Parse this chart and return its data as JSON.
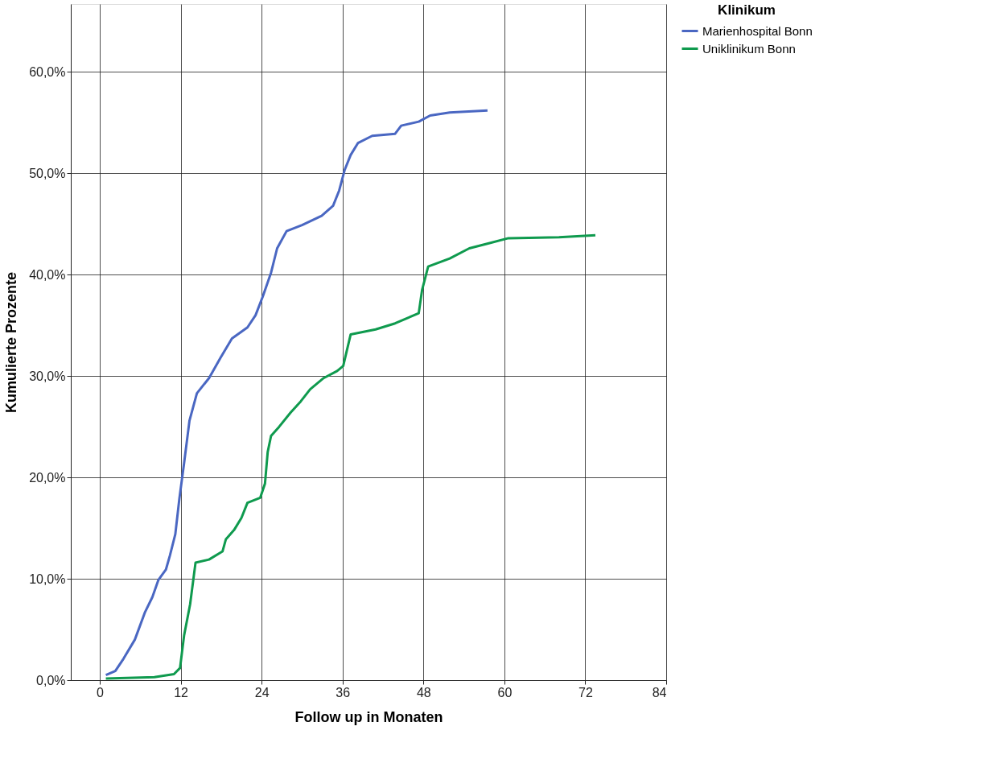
{
  "chart_data": {
    "type": "line",
    "xlabel": "Follow up in Monaten",
    "ylabel": "Kumulierte Prozente",
    "legend_title": "Klinikum",
    "legend": "top right",
    "grid": true,
    "line_style": "solid",
    "marker": "none",
    "xlim": [
      -4.3,
      84
    ],
    "xticks": [
      0,
      12,
      24,
      36,
      48,
      60,
      72,
      84
    ],
    "ylim": [
      0,
      66.7
    ],
    "yticks": [
      {
        "value": 0,
        "label": "0,0%"
      },
      {
        "value": 10,
        "label": "10,0%"
      },
      {
        "value": 20,
        "label": "20,0%"
      },
      {
        "value": 30,
        "label": "30,0%"
      },
      {
        "value": 40,
        "label": "40,0%"
      },
      {
        "value": 50,
        "label": "50,0%"
      },
      {
        "value": 60,
        "label": "60,0%"
      }
    ],
    "series": [
      {
        "name": "Marienhospital Bonn",
        "color": "#4a67c2",
        "x": [
          0.9,
          2.3,
          3.5,
          5.2,
          6.7,
          7.8,
          8.7,
          9.8,
          10.4,
          11.2,
          11.8,
          12.5,
          13.3,
          14.4,
          16.2,
          17.9,
          19.6,
          21.9,
          23.1,
          24.2,
          25.4,
          26.3,
          27.7,
          30.0,
          32.9,
          34.6,
          35.5,
          36.3,
          37.2,
          38.3,
          40.4,
          43.8,
          44.7,
          47.3,
          49.0,
          51.9,
          57.5
        ],
        "values": [
          0.5,
          0.9,
          2.1,
          4.0,
          6.7,
          8.2,
          9.9,
          10.9,
          12.3,
          14.4,
          17.9,
          21.4,
          25.6,
          28.3,
          29.8,
          31.8,
          33.7,
          34.8,
          36.0,
          37.9,
          40.2,
          42.6,
          44.3,
          44.9,
          45.8,
          46.8,
          48.3,
          50.3,
          51.8,
          53.0,
          53.7,
          53.9,
          54.7,
          55.1,
          55.7,
          56.0,
          56.2
        ]
      },
      {
        "name": "Uniklinikum Bonn",
        "color": "#0f9a4e",
        "x": [
          0.9,
          8.1,
          11.0,
          11.9,
          12.5,
          13.4,
          14.2,
          16.2,
          18.2,
          18.7,
          19.9,
          21.0,
          21.9,
          23.8,
          24.5,
          24.9,
          25.4,
          26.6,
          28.3,
          29.8,
          31.2,
          33.2,
          35.2,
          36.1,
          37.2,
          40.9,
          43.8,
          47.3,
          47.8,
          48.7,
          51.9,
          54.8,
          57.7,
          60.6,
          68.1,
          73.5
        ],
        "values": [
          0.15,
          0.3,
          0.6,
          1.2,
          4.4,
          7.5,
          11.6,
          11.9,
          12.7,
          13.9,
          14.8,
          16.0,
          17.5,
          18.0,
          19.4,
          22.5,
          24.1,
          25.0,
          26.4,
          27.5,
          28.7,
          29.8,
          30.5,
          31.0,
          34.1,
          34.6,
          35.2,
          36.2,
          38.5,
          40.8,
          41.6,
          42.6,
          43.1,
          43.6,
          43.7,
          43.9
        ]
      }
    ]
  }
}
